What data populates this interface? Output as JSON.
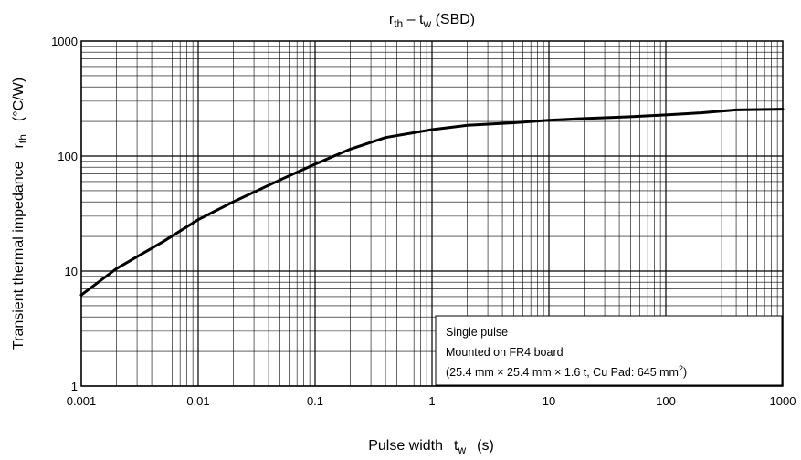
{
  "chart_data": {
    "type": "line",
    "title": {
      "main": "r",
      "sub1": "th",
      "mid": " – t",
      "sub2": "w",
      "tail": " (SBD)"
    },
    "xlabel": {
      "text": "Pulse width",
      "sym": "t",
      "sub": "w",
      "unit": "(s)"
    },
    "ylabel": {
      "text": "Transient thermal impedance",
      "sym": "r",
      "sub": "th",
      "unit": "(°C/W)"
    },
    "x_scale": "log",
    "y_scale": "log",
    "xlim": [
      0.001,
      1000
    ],
    "ylim": [
      1,
      1000
    ],
    "x_ticks": [
      0.001,
      0.01,
      0.1,
      1,
      10,
      100,
      1000
    ],
    "x_tick_labels": [
      "0.001",
      "0.01",
      "0.1",
      "1",
      "10",
      "100",
      "1000"
    ],
    "y_ticks": [
      1,
      10,
      100,
      1000
    ],
    "y_tick_labels": [
      "1",
      "10",
      "100",
      "1000"
    ],
    "grid": true,
    "series": [
      {
        "x": [
          0.001,
          0.002,
          0.005,
          0.01,
          0.02,
          0.05,
          0.1,
          0.2,
          0.4,
          1,
          2,
          5,
          10,
          20,
          50,
          100,
          200,
          400,
          1000
        ],
        "y": [
          6.2,
          10.5,
          18,
          28,
          40,
          62,
          85,
          115,
          145,
          170,
          185,
          195,
          205,
          212,
          220,
          228,
          238,
          252,
          256
        ]
      }
    ],
    "annotation": {
      "line1": "Single pulse",
      "line2": "Mounted on FR4 board",
      "line3": "(25.4 mm × 25.4 mm × 1.6 t, Cu Pad: 645 mm",
      "line3_sup": "2",
      "line3_tail": ")"
    }
  }
}
